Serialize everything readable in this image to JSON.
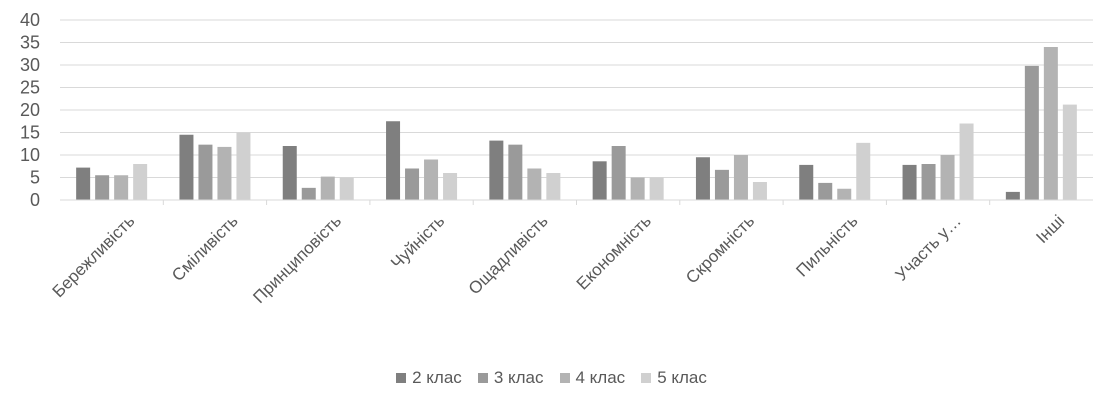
{
  "chart_data": {
    "type": "bar",
    "categories": [
      "Бережливість",
      "Сміливість",
      "Принциповість",
      "Чуйність",
      "Ощадливість",
      "Економність",
      "Скромність",
      "Пильність",
      "Участь у…",
      "Інші"
    ],
    "series": [
      {
        "name": "2 клас",
        "values": [
          7.2,
          14.5,
          12,
          17.5,
          13.2,
          8.6,
          9.5,
          7.8,
          7.8,
          1.8
        ],
        "color": "#7f7f7f"
      },
      {
        "name": "3 клас",
        "values": [
          5.5,
          12.3,
          2.7,
          7,
          12.3,
          12,
          6.7,
          3.8,
          8,
          29.8
        ],
        "color": "#9a9a9a"
      },
      {
        "name": "4 клас",
        "values": [
          5.5,
          11.8,
          5.2,
          9,
          7,
          5,
          10,
          2.5,
          10,
          34
        ],
        "color": "#b3b3b3"
      },
      {
        "name": "5 клас",
        "values": [
          8,
          15,
          5,
          6,
          6,
          5,
          4,
          12.7,
          17,
          21.2
        ],
        "color": "#d0d0d0"
      }
    ],
    "y_ticks": [
      "0",
      "5",
      "10",
      "15",
      "20",
      "25",
      "30",
      "35",
      "40"
    ],
    "ylim": [
      0,
      40
    ],
    "grid": true,
    "legend_position": "bottom",
    "title": "",
    "xlabel": "",
    "ylabel": ""
  }
}
